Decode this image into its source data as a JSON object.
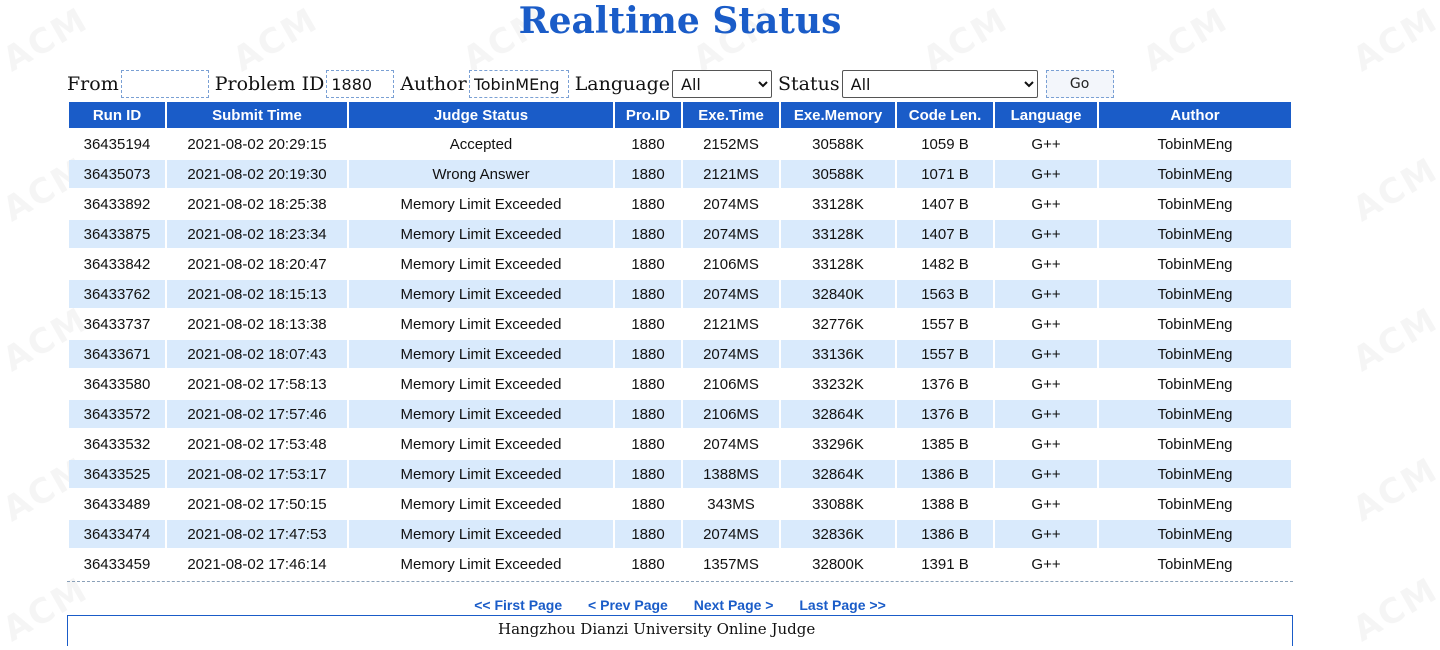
{
  "page": {
    "title": "Realtime Status"
  },
  "watermark_text": "ACM",
  "filters": {
    "from_label": "From",
    "from_value": "",
    "problem_id_label": "Problem ID",
    "problem_id_value": "1880",
    "author_label": "Author",
    "author_value": "TobinMEng",
    "language_label": "Language",
    "language_selected": "All",
    "status_label": "Status",
    "status_selected": "All",
    "go_label": "Go"
  },
  "table": {
    "headers": [
      "Run ID",
      "Submit Time",
      "Judge Status",
      "Pro.ID",
      "Exe.Time",
      "Exe.Memory",
      "Code Len.",
      "Language",
      "Author"
    ],
    "rows": [
      [
        "36435194",
        "2021-08-02 20:29:15",
        "Accepted",
        "1880",
        "2152MS",
        "30588K",
        "1059 B",
        "G++",
        "TobinMEng"
      ],
      [
        "36435073",
        "2021-08-02 20:19:30",
        "Wrong Answer",
        "1880",
        "2121MS",
        "30588K",
        "1071 B",
        "G++",
        "TobinMEng"
      ],
      [
        "36433892",
        "2021-08-02 18:25:38",
        "Memory Limit Exceeded",
        "1880",
        "2074MS",
        "33128K",
        "1407 B",
        "G++",
        "TobinMEng"
      ],
      [
        "36433875",
        "2021-08-02 18:23:34",
        "Memory Limit Exceeded",
        "1880",
        "2074MS",
        "33128K",
        "1407 B",
        "G++",
        "TobinMEng"
      ],
      [
        "36433842",
        "2021-08-02 18:20:47",
        "Memory Limit Exceeded",
        "1880",
        "2106MS",
        "33128K",
        "1482 B",
        "G++",
        "TobinMEng"
      ],
      [
        "36433762",
        "2021-08-02 18:15:13",
        "Memory Limit Exceeded",
        "1880",
        "2074MS",
        "32840K",
        "1563 B",
        "G++",
        "TobinMEng"
      ],
      [
        "36433737",
        "2021-08-02 18:13:38",
        "Memory Limit Exceeded",
        "1880",
        "2121MS",
        "32776K",
        "1557 B",
        "G++",
        "TobinMEng"
      ],
      [
        "36433671",
        "2021-08-02 18:07:43",
        "Memory Limit Exceeded",
        "1880",
        "2074MS",
        "33136K",
        "1557 B",
        "G++",
        "TobinMEng"
      ],
      [
        "36433580",
        "2021-08-02 17:58:13",
        "Memory Limit Exceeded",
        "1880",
        "2106MS",
        "33232K",
        "1376 B",
        "G++",
        "TobinMEng"
      ],
      [
        "36433572",
        "2021-08-02 17:57:46",
        "Memory Limit Exceeded",
        "1880",
        "2106MS",
        "32864K",
        "1376 B",
        "G++",
        "TobinMEng"
      ],
      [
        "36433532",
        "2021-08-02 17:53:48",
        "Memory Limit Exceeded",
        "1880",
        "2074MS",
        "33296K",
        "1385 B",
        "G++",
        "TobinMEng"
      ],
      [
        "36433525",
        "2021-08-02 17:53:17",
        "Memory Limit Exceeded",
        "1880",
        "1388MS",
        "32864K",
        "1386 B",
        "G++",
        "TobinMEng"
      ],
      [
        "36433489",
        "2021-08-02 17:50:15",
        "Memory Limit Exceeded",
        "1880",
        "343MS",
        "33088K",
        "1388 B",
        "G++",
        "TobinMEng"
      ],
      [
        "36433474",
        "2021-08-02 17:47:53",
        "Memory Limit Exceeded",
        "1880",
        "2074MS",
        "32836K",
        "1386 B",
        "G++",
        "TobinMEng"
      ],
      [
        "36433459",
        "2021-08-02 17:46:14",
        "Memory Limit Exceeded",
        "1880",
        "1357MS",
        "32800K",
        "1391 B",
        "G++",
        "TobinMEng"
      ]
    ]
  },
  "pager": {
    "first": "<< First Page",
    "prev": "< Prev Page",
    "next": "Next Page >",
    "last": "Last Page >>"
  },
  "footer": {
    "text": "Hangzhou Dianzi University Online Judge"
  },
  "colors": {
    "accent": "#1a5cc8",
    "accepted": "#e01010",
    "other_status": "#167a16",
    "row_alt": "#d9eafc"
  }
}
